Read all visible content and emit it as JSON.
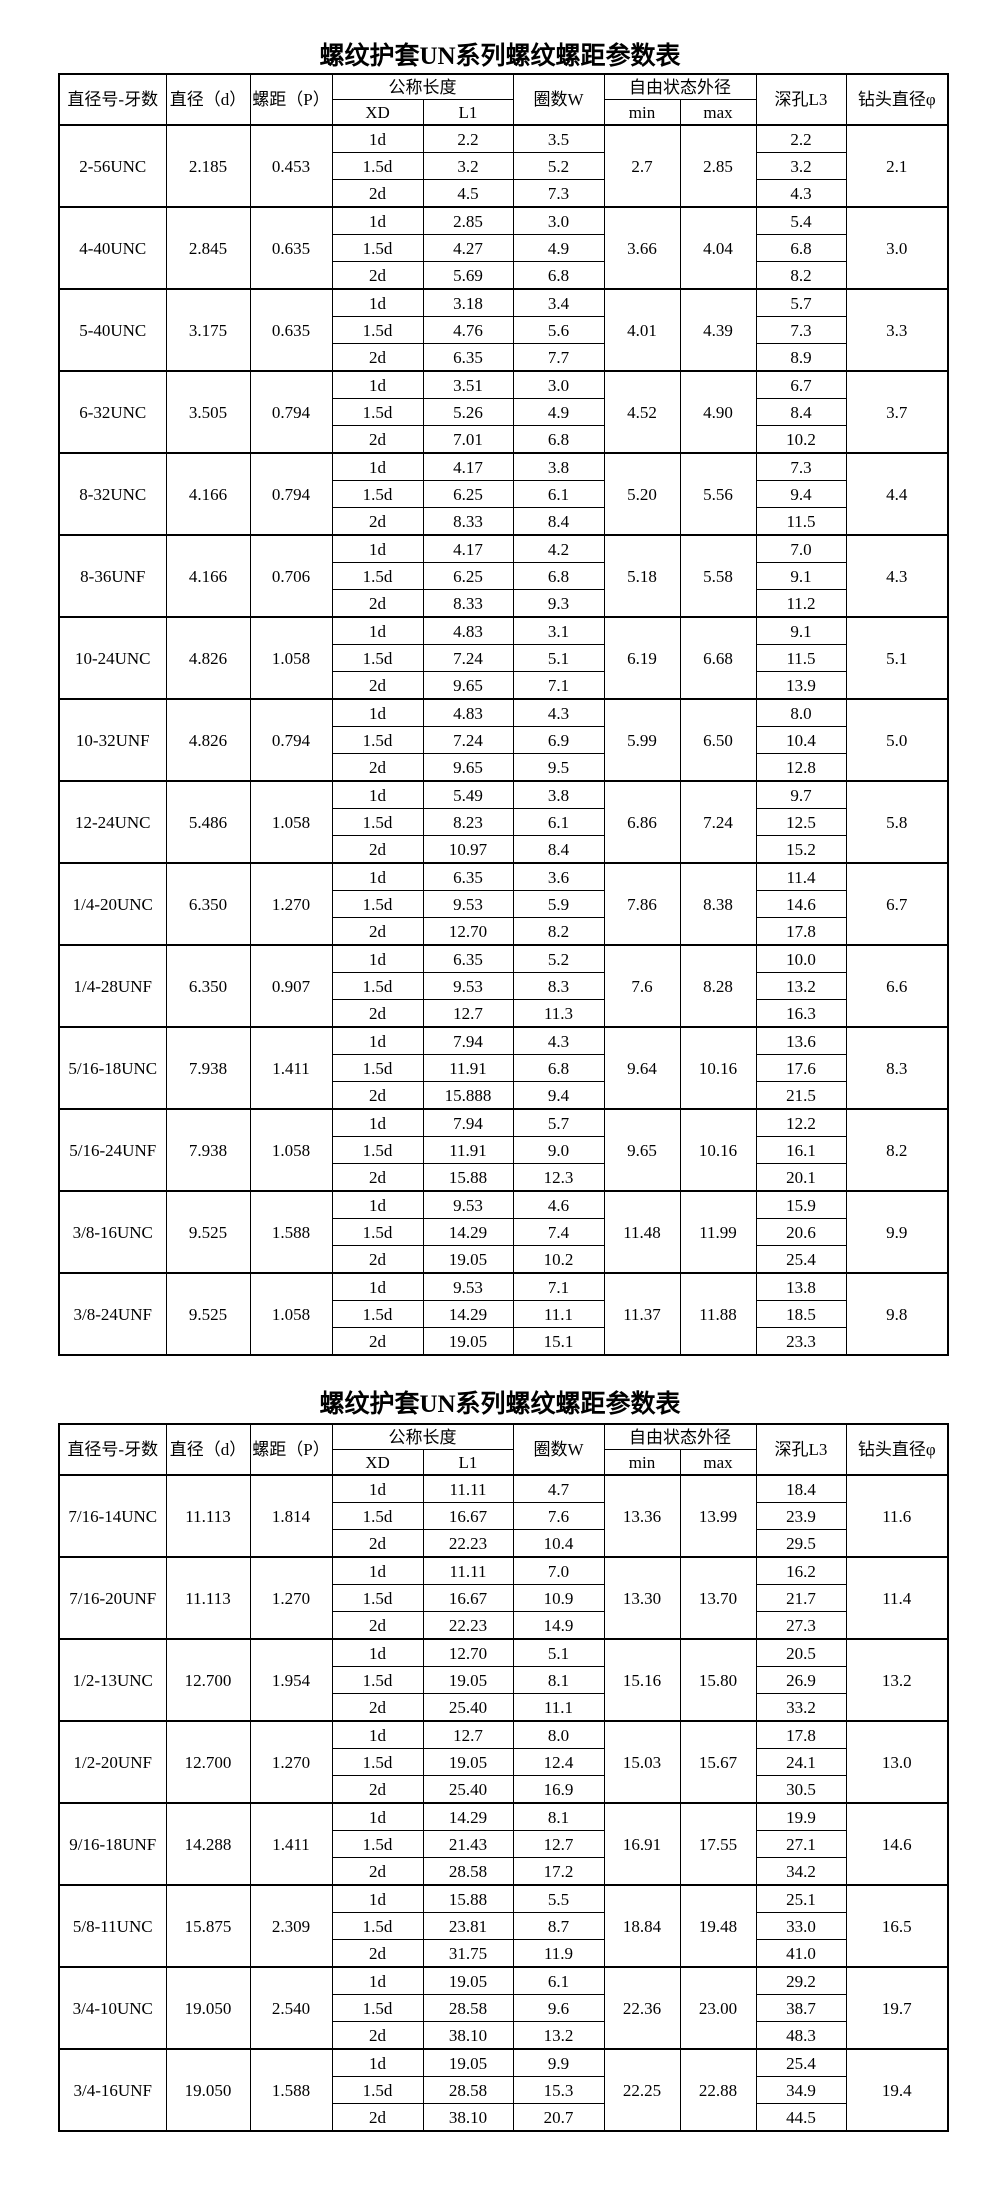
{
  "tables": [
    {
      "title": "螺纹护套UN系列螺纹螺距参数表",
      "headers": {
        "size": "直径号-牙数",
        "diameter": "直径（d）",
        "pitch": "螺距（P）",
        "nominal_length": "公称长度",
        "xd": "XD",
        "l1": "L1",
        "coils": "圈数W",
        "free_od": "自由状态外径",
        "min": "min",
        "max": "max",
        "hole_depth": "深孔L3",
        "drill": "钻头直径φ"
      },
      "groups": [
        {
          "size": "2-56UNC",
          "d": "2.185",
          "p": "0.453",
          "rows": [
            [
              "1d",
              "2.2",
              "3.5",
              "2.2"
            ],
            [
              "1.5d",
              "3.2",
              "5.2",
              "3.2"
            ],
            [
              "2d",
              "4.5",
              "7.3",
              "4.3"
            ]
          ],
          "min": "2.7",
          "max": "2.85",
          "drill": "2.1"
        },
        {
          "size": "4-40UNC",
          "d": "2.845",
          "p": "0.635",
          "rows": [
            [
              "1d",
              "2.85",
              "3.0",
              "5.4"
            ],
            [
              "1.5d",
              "4.27",
              "4.9",
              "6.8"
            ],
            [
              "2d",
              "5.69",
              "6.8",
              "8.2"
            ]
          ],
          "min": "3.66",
          "max": "4.04",
          "drill": "3.0"
        },
        {
          "size": "5-40UNC",
          "d": "3.175",
          "p": "0.635",
          "rows": [
            [
              "1d",
              "3.18",
              "3.4",
              "5.7"
            ],
            [
              "1.5d",
              "4.76",
              "5.6",
              "7.3"
            ],
            [
              "2d",
              "6.35",
              "7.7",
              "8.9"
            ]
          ],
          "min": "4.01",
          "max": "4.39",
          "drill": "3.3"
        },
        {
          "size": "6-32UNC",
          "d": "3.505",
          "p": "0.794",
          "rows": [
            [
              "1d",
              "3.51",
              "3.0",
              "6.7"
            ],
            [
              "1.5d",
              "5.26",
              "4.9",
              "8.4"
            ],
            [
              "2d",
              "7.01",
              "6.8",
              "10.2"
            ]
          ],
          "min": "4.52",
          "max": "4.90",
          "drill": "3.7"
        },
        {
          "size": "8-32UNC",
          "d": "4.166",
          "p": "0.794",
          "rows": [
            [
              "1d",
              "4.17",
              "3.8",
              "7.3"
            ],
            [
              "1.5d",
              "6.25",
              "6.1",
              "9.4"
            ],
            [
              "2d",
              "8.33",
              "8.4",
              "11.5"
            ]
          ],
          "min": "5.20",
          "max": "5.56",
          "drill": "4.4"
        },
        {
          "size": "8-36UNF",
          "d": "4.166",
          "p": "0.706",
          "rows": [
            [
              "1d",
              "4.17",
              "4.2",
              "7.0"
            ],
            [
              "1.5d",
              "6.25",
              "6.8",
              "9.1"
            ],
            [
              "2d",
              "8.33",
              "9.3",
              "11.2"
            ]
          ],
          "min": "5.18",
          "max": "5.58",
          "drill": "4.3"
        },
        {
          "size": "10-24UNC",
          "d": "4.826",
          "p": "1.058",
          "rows": [
            [
              "1d",
              "4.83",
              "3.1",
              "9.1"
            ],
            [
              "1.5d",
              "7.24",
              "5.1",
              "11.5"
            ],
            [
              "2d",
              "9.65",
              "7.1",
              "13.9"
            ]
          ],
          "min": "6.19",
          "max": "6.68",
          "drill": "5.1"
        },
        {
          "size": "10-32UNF",
          "d": "4.826",
          "p": "0.794",
          "rows": [
            [
              "1d",
              "4.83",
              "4.3",
              "8.0"
            ],
            [
              "1.5d",
              "7.24",
              "6.9",
              "10.4"
            ],
            [
              "2d",
              "9.65",
              "9.5",
              "12.8"
            ]
          ],
          "min": "5.99",
          "max": "6.50",
          "drill": "5.0"
        },
        {
          "size": "12-24UNC",
          "d": "5.486",
          "p": "1.058",
          "rows": [
            [
              "1d",
              "5.49",
              "3.8",
              "9.7"
            ],
            [
              "1.5d",
              "8.23",
              "6.1",
              "12.5"
            ],
            [
              "2d",
              "10.97",
              "8.4",
              "15.2"
            ]
          ],
          "min": "6.86",
          "max": "7.24",
          "drill": "5.8"
        },
        {
          "size": "1/4-20UNC",
          "d": "6.350",
          "p": "1.270",
          "rows": [
            [
              "1d",
              "6.35",
              "3.6",
              "11.4"
            ],
            [
              "1.5d",
              "9.53",
              "5.9",
              "14.6"
            ],
            [
              "2d",
              "12.70",
              "8.2",
              "17.8"
            ]
          ],
          "min": "7.86",
          "max": "8.38",
          "drill": "6.7"
        },
        {
          "size": "1/4-28UNF",
          "d": "6.350",
          "p": "0.907",
          "rows": [
            [
              "1d",
              "6.35",
              "5.2",
              "10.0"
            ],
            [
              "1.5d",
              "9.53",
              "8.3",
              "13.2"
            ],
            [
              "2d",
              "12.7",
              "11.3",
              "16.3"
            ]
          ],
          "min": "7.6",
          "max": "8.28",
          "drill": "6.6"
        },
        {
          "size": "5/16-18UNC",
          "d": "7.938",
          "p": "1.411",
          "rows": [
            [
              "1d",
              "7.94",
              "4.3",
              "13.6"
            ],
            [
              "1.5d",
              "11.91",
              "6.8",
              "17.6"
            ],
            [
              "2d",
              "15.888",
              "9.4",
              "21.5"
            ]
          ],
          "min": "9.64",
          "max": "10.16",
          "drill": "8.3"
        },
        {
          "size": "5/16-24UNF",
          "d": "7.938",
          "p": "1.058",
          "rows": [
            [
              "1d",
              "7.94",
              "5.7",
              "12.2"
            ],
            [
              "1.5d",
              "11.91",
              "9.0",
              "16.1"
            ],
            [
              "2d",
              "15.88",
              "12.3",
              "20.1"
            ]
          ],
          "min": "9.65",
          "max": "10.16",
          "drill": "8.2"
        },
        {
          "size": "3/8-16UNC",
          "d": "9.525",
          "p": "1.588",
          "rows": [
            [
              "1d",
              "9.53",
              "4.6",
              "15.9"
            ],
            [
              "1.5d",
              "14.29",
              "7.4",
              "20.6"
            ],
            [
              "2d",
              "19.05",
              "10.2",
              "25.4"
            ]
          ],
          "min": "11.48",
          "max": "11.99",
          "drill": "9.9"
        },
        {
          "size": "3/8-24UNF",
          "d": "9.525",
          "p": "1.058",
          "rows": [
            [
              "1d",
              "9.53",
              "7.1",
              "13.8"
            ],
            [
              "1.5d",
              "14.29",
              "11.1",
              "18.5"
            ],
            [
              "2d",
              "19.05",
              "15.1",
              "23.3"
            ]
          ],
          "min": "11.37",
          "max": "11.88",
          "drill": "9.8"
        }
      ]
    },
    {
      "title": "螺纹护套UN系列螺纹螺距参数表",
      "headers": {
        "size": "直径号-牙数",
        "diameter": "直径（d）",
        "pitch": "螺距（P）",
        "nominal_length": "公称长度",
        "xd": "XD",
        "l1": "L1",
        "coils": "圈数W",
        "free_od": "自由状态外径",
        "min": "min",
        "max": "max",
        "hole_depth": "深孔L3",
        "drill": "钻头直径φ"
      },
      "groups": [
        {
          "size": "7/16-14UNC",
          "d": "11.113",
          "p": "1.814",
          "rows": [
            [
              "1d",
              "11.11",
              "4.7",
              "18.4"
            ],
            [
              "1.5d",
              "16.67",
              "7.6",
              "23.9"
            ],
            [
              "2d",
              "22.23",
              "10.4",
              "29.5"
            ]
          ],
          "min": "13.36",
          "max": "13.99",
          "drill": "11.6"
        },
        {
          "size": "7/16-20UNF",
          "d": "11.113",
          "p": "1.270",
          "rows": [
            [
              "1d",
              "11.11",
              "7.0",
              "16.2"
            ],
            [
              "1.5d",
              "16.67",
              "10.9",
              "21.7"
            ],
            [
              "2d",
              "22.23",
              "14.9",
              "27.3"
            ]
          ],
          "min": "13.30",
          "max": "13.70",
          "drill": "11.4"
        },
        {
          "size": "1/2-13UNC",
          "d": "12.700",
          "p": "1.954",
          "rows": [
            [
              "1d",
              "12.70",
              "5.1",
              "20.5"
            ],
            [
              "1.5d",
              "19.05",
              "8.1",
              "26.9"
            ],
            [
              "2d",
              "25.40",
              "11.1",
              "33.2"
            ]
          ],
          "min": "15.16",
          "max": "15.80",
          "drill": "13.2"
        },
        {
          "size": "1/2-20UNF",
          "d": "12.700",
          "p": "1.270",
          "rows": [
            [
              "1d",
              "12.7",
              "8.0",
              "17.8"
            ],
            [
              "1.5d",
              "19.05",
              "12.4",
              "24.1"
            ],
            [
              "2d",
              "25.40",
              "16.9",
              "30.5"
            ]
          ],
          "min": "15.03",
          "max": "15.67",
          "drill": "13.0"
        },
        {
          "size": "9/16-18UNF",
          "d": "14.288",
          "p": "1.411",
          "rows": [
            [
              "1d",
              "14.29",
              "8.1",
              "19.9"
            ],
            [
              "1.5d",
              "21.43",
              "12.7",
              "27.1"
            ],
            [
              "2d",
              "28.58",
              "17.2",
              "34.2"
            ]
          ],
          "min": "16.91",
          "max": "17.55",
          "drill": "14.6"
        },
        {
          "size": "5/8-11UNC",
          "d": "15.875",
          "p": "2.309",
          "rows": [
            [
              "1d",
              "15.88",
              "5.5",
              "25.1"
            ],
            [
              "1.5d",
              "23.81",
              "8.7",
              "33.0"
            ],
            [
              "2d",
              "31.75",
              "11.9",
              "41.0"
            ]
          ],
          "min": "18.84",
          "max": "19.48",
          "drill": "16.5"
        },
        {
          "size": "3/4-10UNC",
          "d": "19.050",
          "p": "2.540",
          "rows": [
            [
              "1d",
              "19.05",
              "6.1",
              "29.2"
            ],
            [
              "1.5d",
              "28.58",
              "9.6",
              "38.7"
            ],
            [
              "2d",
              "38.10",
              "13.2",
              "48.3"
            ]
          ],
          "min": "22.36",
          "max": "23.00",
          "drill": "19.7"
        },
        {
          "size": "3/4-16UNF",
          "d": "19.050",
          "p": "1.588",
          "rows": [
            [
              "1d",
              "19.05",
              "9.9",
              "25.4"
            ],
            [
              "1.5d",
              "28.58",
              "15.3",
              "34.9"
            ],
            [
              "2d",
              "38.10",
              "20.7",
              "44.5"
            ]
          ],
          "min": "22.25",
          "max": "22.88",
          "drill": "19.4"
        }
      ]
    }
  ]
}
